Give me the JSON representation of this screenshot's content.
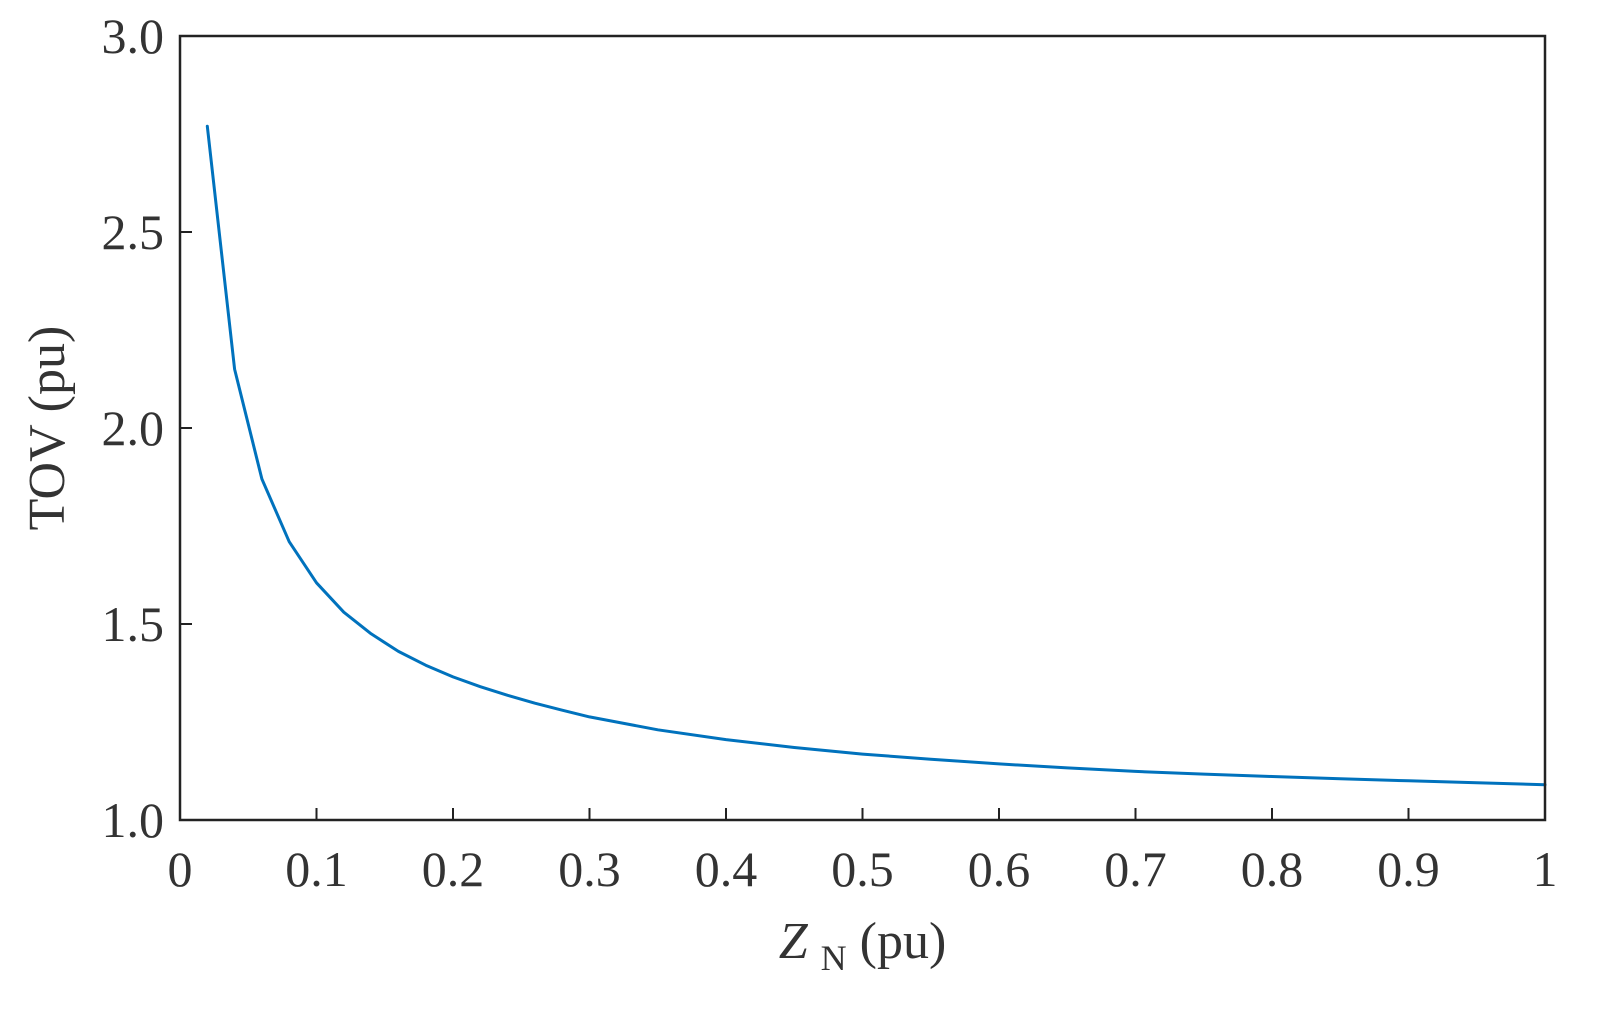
{
  "chart_data": {
    "type": "line",
    "title": "",
    "xlabel": {
      "symbol": "Z",
      "subscript": "N",
      "unit": " (pu)"
    },
    "ylabel": "TOV (pu)",
    "xlim": [
      0,
      1
    ],
    "ylim": [
      1.0,
      3.0
    ],
    "xticks": [
      0,
      0.1,
      0.2,
      0.3,
      0.4,
      0.5,
      0.6,
      0.7,
      0.8,
      0.9,
      1
    ],
    "xtick_labels": [
      "0",
      "0.1",
      "0.2",
      "0.3",
      "0.4",
      "0.5",
      "0.6",
      "0.7",
      "0.8",
      "0.9",
      "1"
    ],
    "yticks": [
      1.0,
      1.5,
      2.0,
      2.5,
      3.0
    ],
    "ytick_labels": [
      "1.0",
      "1.5",
      "2.0",
      "2.5",
      "3.0"
    ],
    "grid": false,
    "line_color": "#0072bd",
    "series": [
      {
        "x": [
          0.02,
          0.04,
          0.06,
          0.08,
          0.1,
          0.12,
          0.14,
          0.16,
          0.18,
          0.2,
          0.22,
          0.24,
          0.26,
          0.28,
          0.3,
          0.35,
          0.4,
          0.45,
          0.5,
          0.55,
          0.6,
          0.65,
          0.7,
          0.75,
          0.8,
          0.85,
          0.9,
          0.95,
          1.0
        ],
        "y": [
          2.77,
          2.15,
          1.87,
          1.71,
          1.605,
          1.53,
          1.475,
          1.43,
          1.395,
          1.365,
          1.34,
          1.318,
          1.298,
          1.28,
          1.263,
          1.23,
          1.205,
          1.185,
          1.168,
          1.155,
          1.143,
          1.133,
          1.124,
          1.117,
          1.111,
          1.105,
          1.1,
          1.095,
          1.09
        ]
      }
    ]
  }
}
